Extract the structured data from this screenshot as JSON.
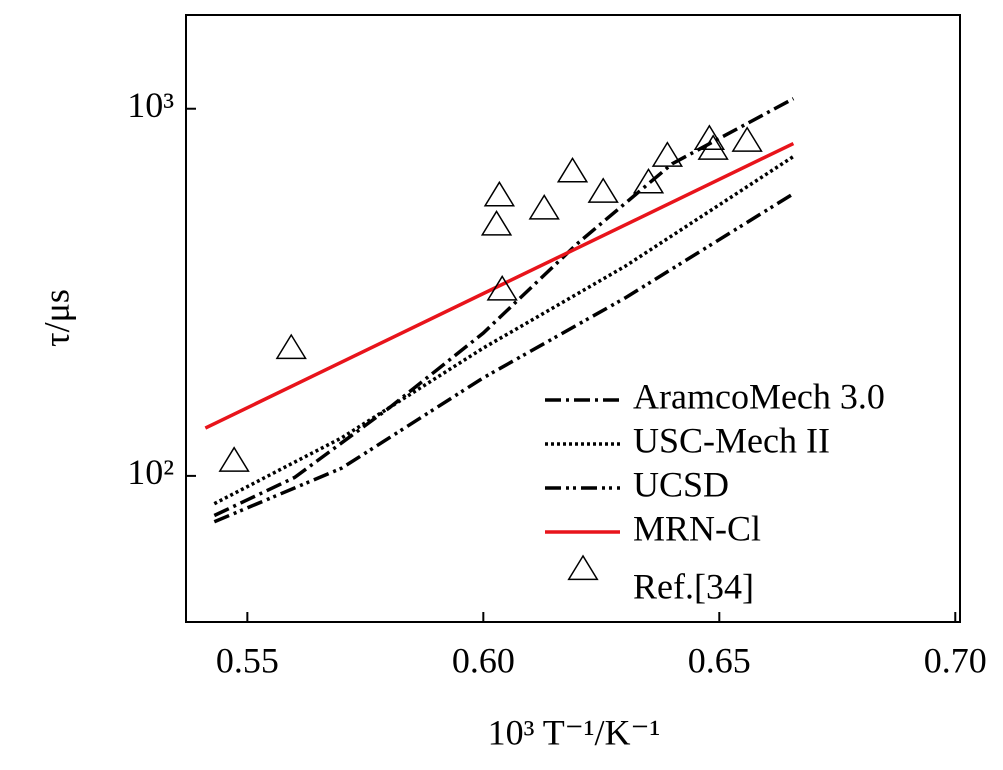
{
  "chart_data": {
    "type": "line",
    "x_label": "10³ T⁻¹/K⁻¹",
    "y_label": "τ/μs",
    "xlim": [
      0.537,
      0.701
    ],
    "ylim": [
      40,
      1800
    ],
    "log_y": true,
    "xticks": [
      {
        "value": 0.55,
        "label": "0.55"
      },
      {
        "value": 0.6,
        "label": "0.60"
      },
      {
        "value": 0.65,
        "label": "0.65"
      },
      {
        "value": 0.7,
        "label": "0.70"
      }
    ],
    "yticks": [
      {
        "value": 100,
        "label": "10²"
      },
      {
        "value": 1000,
        "label": "10³"
      }
    ],
    "legend": "lower right",
    "series": [
      {
        "name": "AramcoMech 3.0",
        "color": "#000000",
        "dash": "16 5 3 5",
        "x": [
          0.543,
          0.56,
          0.58,
          0.6,
          0.62,
          0.64,
          0.6657
        ],
        "values": [
          78,
          99,
          153,
          245,
          430,
          708,
          1065
        ]
      },
      {
        "name": "USC-Mech II",
        "color": "#000000",
        "dash": "3 3",
        "x": [
          0.543,
          0.57,
          0.6,
          0.63,
          0.6657
        ],
        "values": [
          84,
          127,
          223,
          372,
          741
        ]
      },
      {
        "name": "UCSD",
        "color": "#000000",
        "dash": "16 5 3 4 3 5",
        "x": [
          0.543,
          0.57,
          0.6,
          0.63,
          0.6657
        ],
        "values": [
          75,
          105,
          185,
          305,
          587
        ]
      },
      {
        "name": "MRN-Cl",
        "color": "#e8141b",
        "dash": "none",
        "x": [
          0.5411,
          0.6657
        ],
        "values": [
          135,
          804
        ]
      },
      {
        "name": "Ref.[34]",
        "color": "#000000",
        "marker": "triangle",
        "x": [
          0.5472,
          0.5593,
          0.6028,
          0.6034,
          0.604,
          0.6129,
          0.6189,
          0.6254,
          0.635,
          0.639,
          0.6479,
          0.6487,
          0.6559
        ],
        "values": [
          110,
          223,
          484,
          581,
          322,
          535,
          675,
          594,
          630,
          745,
          828,
          778,
          818
        ]
      }
    ]
  }
}
